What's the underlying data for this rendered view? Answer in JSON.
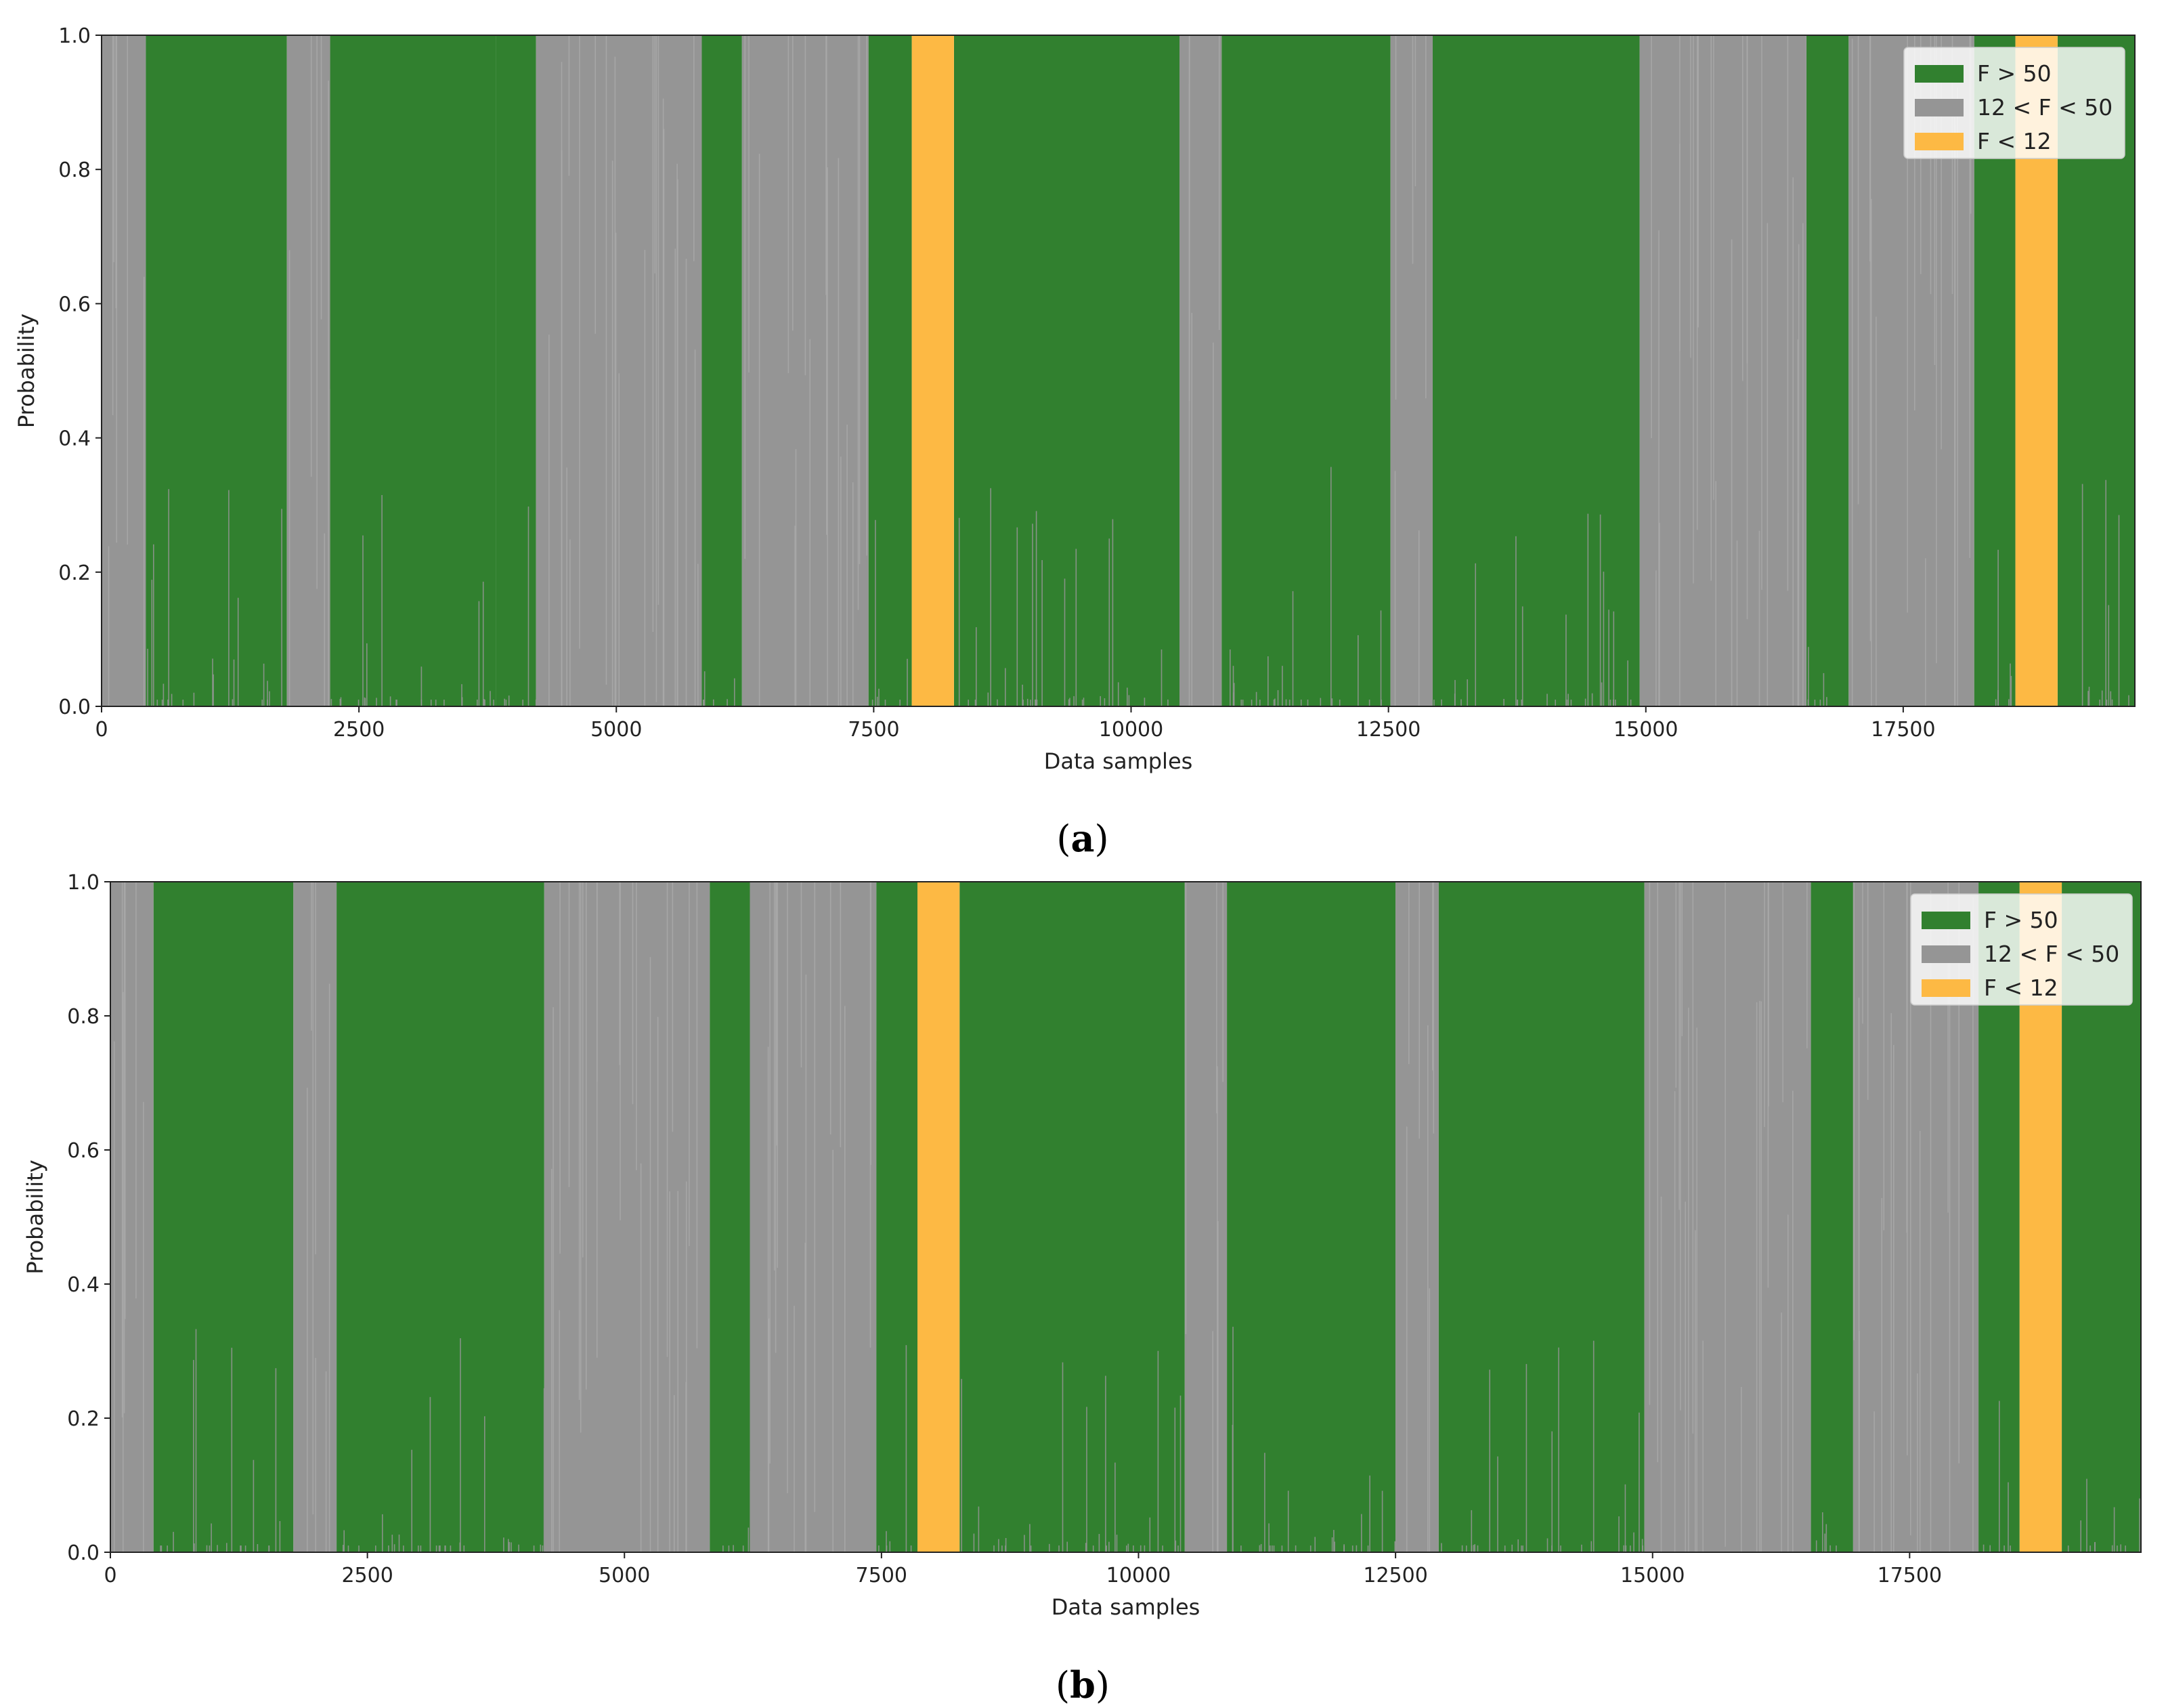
{
  "colors": {
    "high": "#31802f",
    "mid": "#959595",
    "low": "#fdb944"
  },
  "chart_data": [
    {
      "id": "a",
      "caption_letter": "a",
      "type": "area",
      "stacked": true,
      "xlabel": "Data samples",
      "ylabel": "Probability",
      "xlim": [
        0,
        19750
      ],
      "ylim": [
        0,
        1
      ],
      "xticks": [
        0,
        2500,
        5000,
        7500,
        10000,
        12500,
        15000,
        17500
      ],
      "yticks": [
        "0.0",
        "0.2",
        "0.4",
        "0.6",
        "0.8",
        "1.0"
      ],
      "legend": {
        "position": "top-right",
        "entries": [
          {
            "label": "F > 50",
            "class": "high"
          },
          {
            "label": "12 < F < 50",
            "class": "mid"
          },
          {
            "label": "F < 12",
            "class": "low"
          }
        ]
      },
      "segments": [
        {
          "start": 0,
          "end": 430,
          "class": "mid"
        },
        {
          "start": 430,
          "end": 1800,
          "class": "high"
        },
        {
          "start": 1800,
          "end": 2220,
          "class": "mid"
        },
        {
          "start": 2220,
          "end": 3830,
          "class": "high"
        },
        {
          "start": 3830,
          "end": 4220,
          "class": "high"
        },
        {
          "start": 4220,
          "end": 5830,
          "class": "mid"
        },
        {
          "start": 5830,
          "end": 6220,
          "class": "high"
        },
        {
          "start": 6220,
          "end": 7450,
          "class": "mid"
        },
        {
          "start": 7450,
          "end": 7870,
          "class": "high"
        },
        {
          "start": 7870,
          "end": 8280,
          "class": "low"
        },
        {
          "start": 8280,
          "end": 10470,
          "class": "high"
        },
        {
          "start": 10470,
          "end": 10880,
          "class": "mid"
        },
        {
          "start": 10880,
          "end": 12520,
          "class": "high"
        },
        {
          "start": 12520,
          "end": 12930,
          "class": "mid"
        },
        {
          "start": 12930,
          "end": 14940,
          "class": "high"
        },
        {
          "start": 14940,
          "end": 16560,
          "class": "mid"
        },
        {
          "start": 16560,
          "end": 16970,
          "class": "high"
        },
        {
          "start": 16970,
          "end": 18190,
          "class": "mid"
        },
        {
          "start": 18190,
          "end": 18590,
          "class": "high"
        },
        {
          "start": 18590,
          "end": 19000,
          "class": "low"
        },
        {
          "start": 19000,
          "end": 19750,
          "class": "high"
        }
      ]
    },
    {
      "id": "b",
      "caption_letter": "b",
      "type": "area",
      "stacked": true,
      "xlabel": "Data samples",
      "ylabel": "Probability",
      "xlim": [
        0,
        19750
      ],
      "ylim": [
        0,
        1
      ],
      "xticks": [
        0,
        2500,
        5000,
        7500,
        10000,
        12500,
        15000,
        17500
      ],
      "yticks": [
        "0.0",
        "0.2",
        "0.4",
        "0.6",
        "0.8",
        "1.0"
      ],
      "legend": {
        "position": "top-right",
        "entries": [
          {
            "label": "F > 50",
            "class": "high"
          },
          {
            "label": "12 < F < 50",
            "class": "mid"
          },
          {
            "label": "F < 12",
            "class": "low"
          }
        ]
      },
      "segments": [
        {
          "start": 0,
          "end": 420,
          "class": "mid"
        },
        {
          "start": 420,
          "end": 1780,
          "class": "high"
        },
        {
          "start": 1780,
          "end": 2200,
          "class": "mid"
        },
        {
          "start": 2200,
          "end": 4220,
          "class": "high"
        },
        {
          "start": 4220,
          "end": 5830,
          "class": "mid"
        },
        {
          "start": 5830,
          "end": 6220,
          "class": "high"
        },
        {
          "start": 6220,
          "end": 7450,
          "class": "mid"
        },
        {
          "start": 7450,
          "end": 7850,
          "class": "high"
        },
        {
          "start": 7850,
          "end": 8260,
          "class": "low"
        },
        {
          "start": 8260,
          "end": 10450,
          "class": "high"
        },
        {
          "start": 10450,
          "end": 10860,
          "class": "mid"
        },
        {
          "start": 10860,
          "end": 12500,
          "class": "high"
        },
        {
          "start": 12500,
          "end": 12920,
          "class": "mid"
        },
        {
          "start": 12920,
          "end": 14920,
          "class": "high"
        },
        {
          "start": 14920,
          "end": 16540,
          "class": "mid"
        },
        {
          "start": 16540,
          "end": 16950,
          "class": "high"
        },
        {
          "start": 16950,
          "end": 18170,
          "class": "mid"
        },
        {
          "start": 18170,
          "end": 18570,
          "class": "high"
        },
        {
          "start": 18570,
          "end": 18980,
          "class": "low"
        },
        {
          "start": 18980,
          "end": 19750,
          "class": "high"
        }
      ]
    }
  ]
}
